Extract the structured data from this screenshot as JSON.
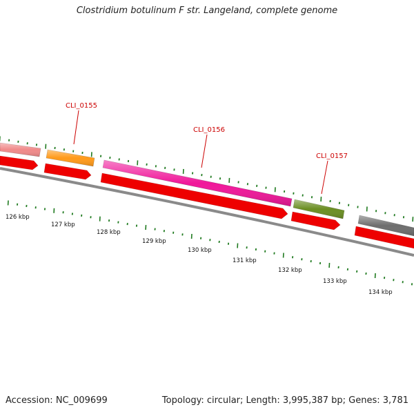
{
  "title": "Clostridium botulinum F str. Langeland, complete genome",
  "footer": {
    "accession": "Accession: NC_009699",
    "summary": "Topology: circular; Length: 3,995,387 bp; Genes: 3,781"
  },
  "genes": [
    {
      "id": "g0",
      "label": "",
      "color": "#f08a8a"
    },
    {
      "id": "g155",
      "label": "CLI_0155",
      "color": "#ff9a1a"
    },
    {
      "id": "g156",
      "label": "CLI_0156",
      "color": "#f0189a"
    },
    {
      "id": "g157",
      "label": "CLI_0157",
      "color": "#6b8e23"
    },
    {
      "id": "g158",
      "label": "",
      "color": "#6e6e6e"
    }
  ],
  "colors": {
    "cds": "#ee0000",
    "backbone": "#8a8a8a",
    "ticks": "#1f7a1f",
    "callout": "#cc0000"
  },
  "ruler": {
    "labels": [
      "126 kbp",
      "127 kbp",
      "128 kbp",
      "129 kbp",
      "130 kbp",
      "131 kbp",
      "132 kbp",
      "133 kbp",
      "134 kbp"
    ]
  }
}
